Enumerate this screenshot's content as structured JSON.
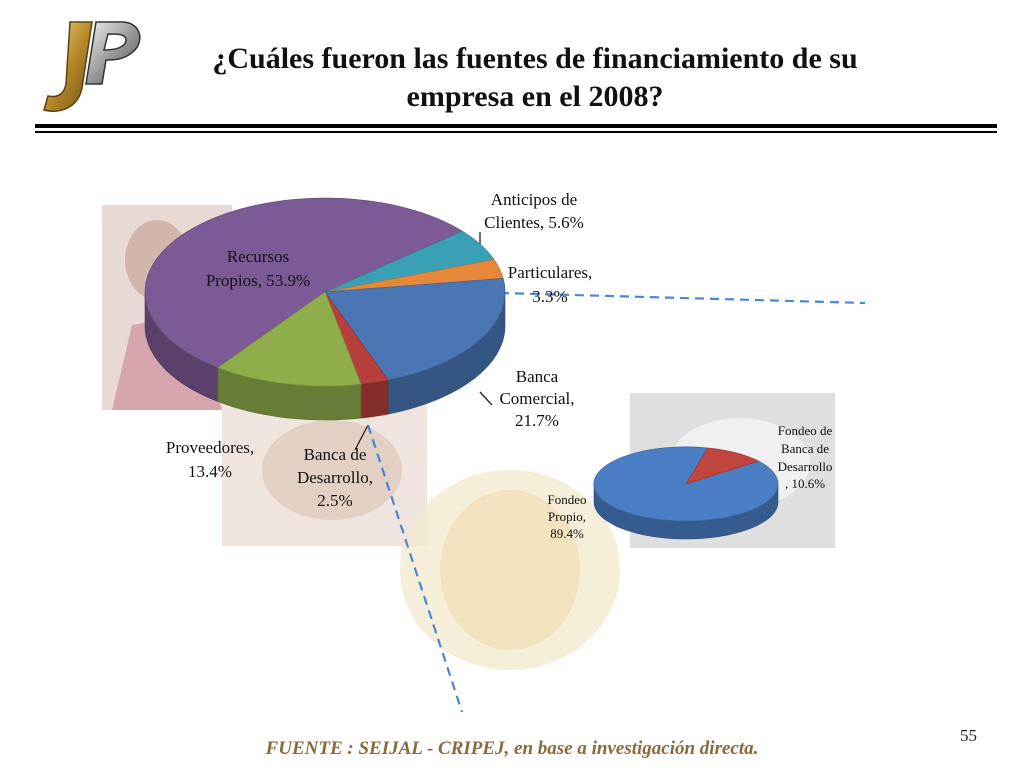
{
  "slide": {
    "title_line1": "¿Cuáles fueron las fuentes de financiamiento de su",
    "title_line2": "empresa en el 2008?",
    "source": "FUENTE :  SEIJAL - CRIPEJ,  en base a investigación directa.",
    "page_number": "55"
  },
  "chart_data": [
    {
      "type": "pie",
      "title": "",
      "slices": [
        {
          "label": "Recursos Propios, 53.9%",
          "name": "Recursos Propios",
          "value": 53.9,
          "color": "#7b5a96"
        },
        {
          "label": "Anticipos de Clientes, 5.6%",
          "name": "Anticipos de Clientes",
          "value": 5.6,
          "color": "#3aa0b6"
        },
        {
          "label": "Particulares, 3.3%",
          "name": "Particulares",
          "value": 3.3,
          "color": "#e6883a"
        },
        {
          "label": "Banca Comercial, 21.7%",
          "name": "Banca Comercial",
          "value": 21.7,
          "color": "#4a76b4"
        },
        {
          "label": "Banca de Desarrollo, 2.5%",
          "name": "Banca de Desarrollo",
          "value": 2.5,
          "color": "#b63f3c"
        },
        {
          "label": "Proveedores, 13.4%",
          "name": "Proveedores",
          "value": 13.4,
          "color": "#8fad4a"
        }
      ]
    },
    {
      "type": "pie",
      "title": "",
      "slices": [
        {
          "label": "Fondeo Propio, 89.4%",
          "name": "Fondeo Propio",
          "value": 89.4,
          "color": "#4a7fc6"
        },
        {
          "label": "Fondeo de Banca de Desarrollo, 10.6%",
          "name": "Fondeo de Banca de Desarrollo",
          "value": 10.6,
          "color": "#c0453f"
        }
      ]
    }
  ]
}
